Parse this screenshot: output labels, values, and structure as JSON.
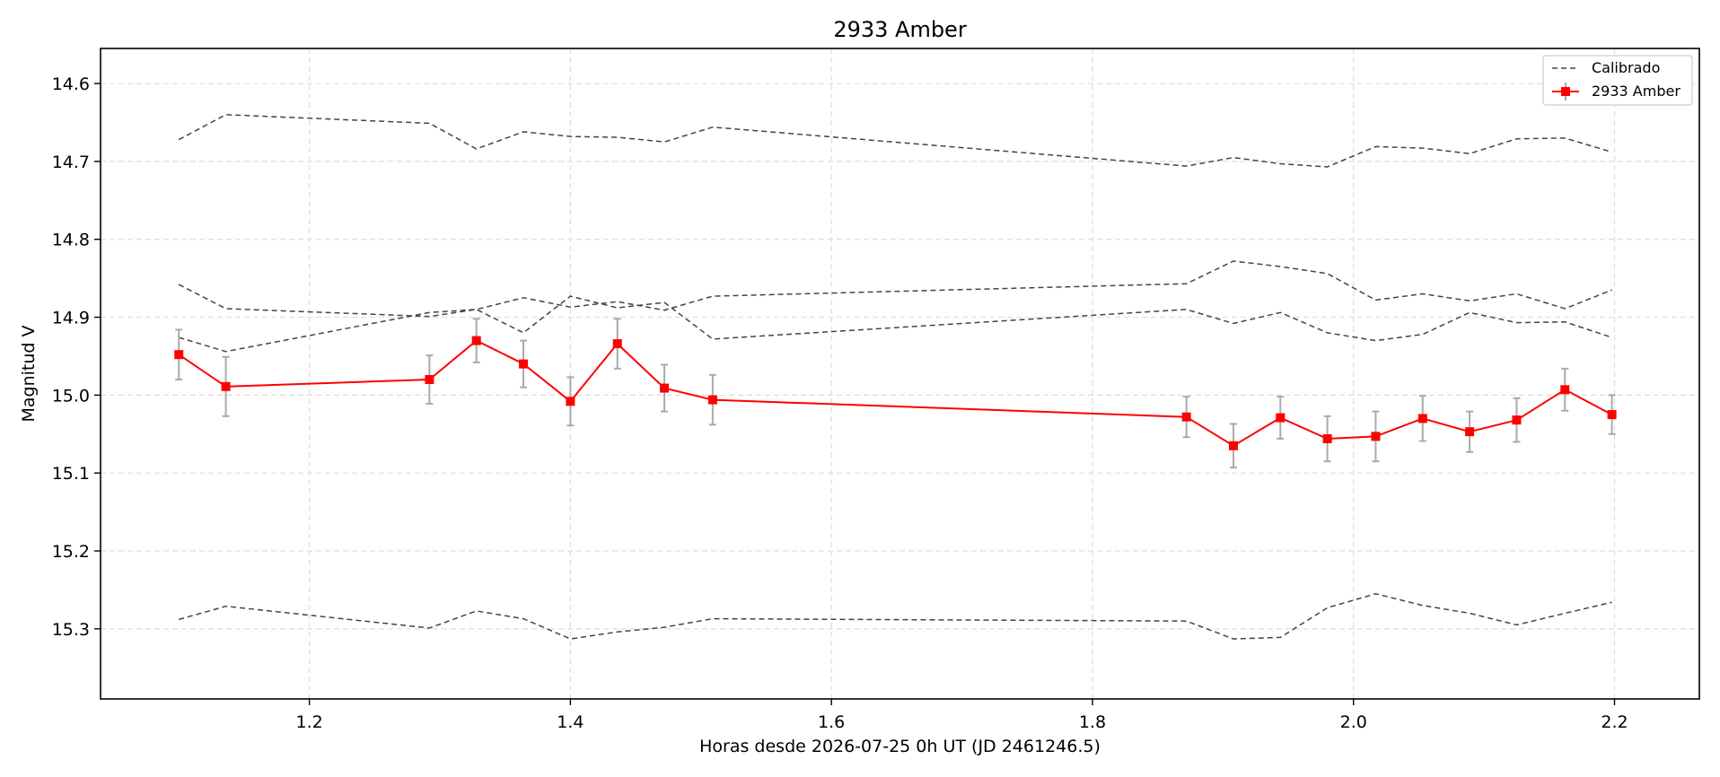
{
  "chart_data": {
    "type": "line",
    "title": "2933 Amber",
    "xlabel": "Horas desde 2026-07-25 0h UT (JD 2461246.5)",
    "ylabel": "Magnitud V",
    "xlim": [
      1.04,
      2.265
    ],
    "ylim": [
      15.39,
      14.555
    ],
    "y_inverted": true,
    "grid": true,
    "legend_position": "top-right",
    "x_ticks": [
      1.2,
      1.4,
      1.6,
      1.8,
      2.0,
      2.2
    ],
    "x_tick_labels": [
      "1.2",
      "1.4",
      "1.6",
      "1.8",
      "2.0",
      "2.2"
    ],
    "y_ticks": [
      14.6,
      14.7,
      14.8,
      14.9,
      15.0,
      15.1,
      15.2,
      15.3
    ],
    "y_tick_labels": [
      "14.6",
      "14.7",
      "14.8",
      "14.9",
      "15.0",
      "15.1",
      "15.2",
      "15.3"
    ],
    "colors": {
      "target": "#ff0000",
      "calibration": "#444444",
      "errorbar": "#aaaaaa",
      "grid": "#dddddd"
    },
    "calibration_series": [
      {
        "x": [
          1.1,
          1.136,
          1.292,
          1.328,
          1.364,
          1.4,
          1.436,
          1.472,
          1.509,
          1.872,
          1.908,
          1.944,
          1.98,
          2.017,
          2.053,
          2.089,
          2.125,
          2.162,
          2.198
        ],
        "y": [
          14.672,
          14.64,
          14.651,
          14.684,
          14.662,
          14.668,
          14.669,
          14.675,
          14.656,
          14.706,
          14.695,
          14.703,
          14.707,
          14.681,
          14.683,
          14.69,
          14.671,
          14.67,
          14.688
        ]
      },
      {
        "x": [
          1.1,
          1.136,
          1.292,
          1.328,
          1.364,
          1.4,
          1.436,
          1.472,
          1.509,
          1.872,
          1.908,
          1.944,
          1.98,
          2.017,
          2.053,
          2.089,
          2.125,
          2.162,
          2.198
        ],
        "y": [
          14.858,
          14.889,
          14.899,
          14.89,
          14.92,
          14.873,
          14.888,
          14.881,
          14.928,
          14.89,
          14.908,
          14.894,
          14.92,
          14.93,
          14.922,
          14.894,
          14.907,
          14.906,
          14.926
        ]
      },
      {
        "x": [
          1.1,
          1.136,
          1.292,
          1.328,
          1.364,
          1.4,
          1.436,
          1.472,
          1.509,
          1.872,
          1.908,
          1.944,
          1.98,
          2.017,
          2.053,
          2.089,
          2.125,
          2.162,
          2.198
        ],
        "y": [
          14.926,
          14.944,
          14.894,
          14.89,
          14.875,
          14.887,
          14.88,
          14.891,
          14.873,
          14.857,
          14.828,
          14.835,
          14.844,
          14.878,
          14.87,
          14.879,
          14.87,
          14.889,
          14.865
        ]
      },
      {
        "x": [
          1.1,
          1.136,
          1.292,
          1.328,
          1.364,
          1.4,
          1.436,
          1.472,
          1.509,
          1.872,
          1.908,
          1.944,
          1.98,
          2.017,
          2.053,
          2.089,
          2.125,
          2.162,
          2.198
        ],
        "y": [
          15.288,
          15.271,
          15.299,
          15.277,
          15.287,
          15.313,
          15.304,
          15.298,
          15.287,
          15.29,
          15.313,
          15.311,
          15.273,
          15.255,
          15.27,
          15.28,
          15.295,
          15.28,
          15.266
        ]
      }
    ],
    "series": [
      {
        "name": "2933 Amber",
        "x": [
          1.1,
          1.136,
          1.292,
          1.328,
          1.364,
          1.4,
          1.436,
          1.472,
          1.509,
          1.872,
          1.908,
          1.944,
          1.98,
          2.017,
          2.053,
          2.089,
          2.125,
          2.162,
          2.198
        ],
        "y": [
          14.948,
          14.989,
          14.98,
          14.93,
          14.96,
          15.008,
          14.934,
          14.991,
          15.006,
          15.028,
          15.065,
          15.029,
          15.056,
          15.053,
          15.03,
          15.047,
          15.032,
          14.993,
          15.025
        ],
        "yerr": [
          0.032,
          0.038,
          0.031,
          0.028,
          0.03,
          0.031,
          0.032,
          0.03,
          0.032,
          0.026,
          0.028,
          0.027,
          0.029,
          0.032,
          0.029,
          0.026,
          0.028,
          0.027,
          0.025
        ]
      }
    ],
    "legend": [
      {
        "label": "Calibrado",
        "style": "dashed"
      },
      {
        "label": "2933 Amber",
        "style": "line-marker-errorbar"
      }
    ]
  }
}
